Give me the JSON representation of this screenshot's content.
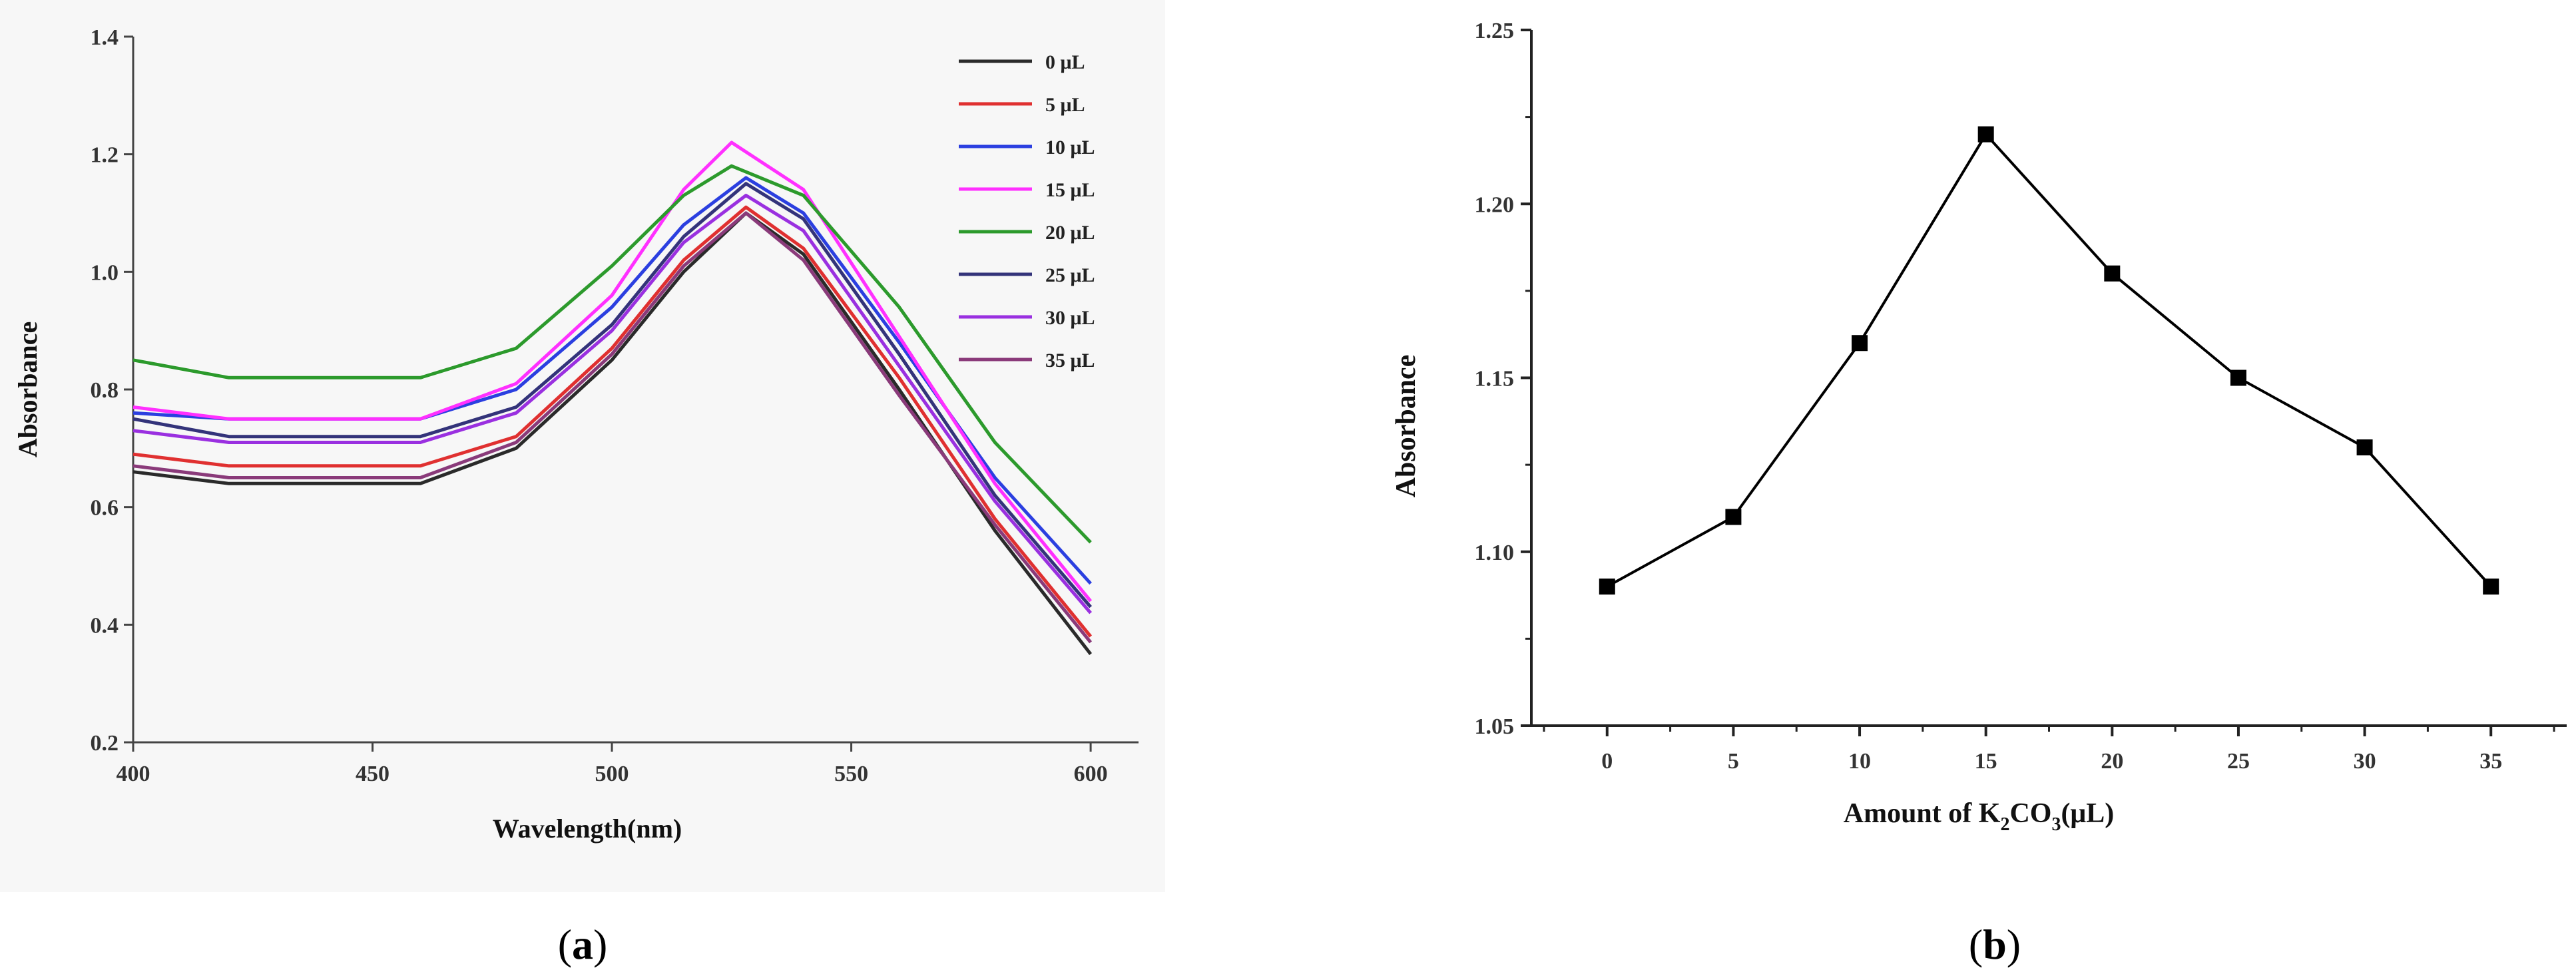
{
  "chart_data": [
    {
      "type": "line",
      "panel": "a",
      "caption_prefix": "(",
      "caption_letter": "a",
      "caption_suffix": ")",
      "title": "",
      "xlabel": "Wavelength(nm)",
      "ylabel": "Absorbance",
      "xlim": [
        400,
        610
      ],
      "ylim": [
        0.2,
        1.4
      ],
      "xticks": [
        400,
        450,
        500,
        550,
        600
      ],
      "xtick_labels": [
        "400",
        "450",
        "500",
        "550",
        "600"
      ],
      "yticks": [
        0.2,
        0.4,
        0.6,
        0.8,
        1.0,
        1.2,
        1.4
      ],
      "ytick_labels": [
        "0.2",
        "0.4",
        "0.6",
        "0.8",
        "1.0",
        "1.2",
        "1.4"
      ],
      "legend_position": "top-right",
      "series": [
        {
          "name": "0 μL",
          "color": "#2a2a2a",
          "x": [
            400,
            420,
            460,
            480,
            500,
            515,
            528,
            540,
            560,
            580,
            600
          ],
          "y": [
            0.66,
            0.64,
            0.64,
            0.7,
            0.85,
            1.0,
            1.1,
            1.03,
            0.8,
            0.56,
            0.35
          ]
        },
        {
          "name": "5 μL",
          "color": "#e03030",
          "x": [
            400,
            420,
            460,
            480,
            500,
            515,
            528,
            540,
            560,
            580,
            600
          ],
          "y": [
            0.69,
            0.67,
            0.67,
            0.72,
            0.87,
            1.02,
            1.11,
            1.04,
            0.82,
            0.58,
            0.38
          ]
        },
        {
          "name": "10 μL",
          "color": "#2b3fe0",
          "x": [
            400,
            420,
            460,
            480,
            500,
            515,
            528,
            540,
            560,
            580,
            600
          ],
          "y": [
            0.76,
            0.75,
            0.75,
            0.8,
            0.94,
            1.08,
            1.16,
            1.1,
            0.88,
            0.65,
            0.47
          ]
        },
        {
          "name": "15 μL",
          "color": "#ff30ff",
          "x": [
            400,
            420,
            460,
            480,
            500,
            515,
            525,
            540,
            560,
            580,
            600
          ],
          "y": [
            0.77,
            0.75,
            0.75,
            0.81,
            0.96,
            1.14,
            1.22,
            1.14,
            0.89,
            0.64,
            0.44
          ]
        },
        {
          "name": "20 μL",
          "color": "#2c9a2c",
          "x": [
            400,
            420,
            460,
            480,
            500,
            515,
            525,
            540,
            560,
            580,
            600
          ],
          "y": [
            0.85,
            0.82,
            0.82,
            0.87,
            1.01,
            1.13,
            1.18,
            1.13,
            0.94,
            0.71,
            0.54
          ]
        },
        {
          "name": "25 μL",
          "color": "#33337a",
          "x": [
            400,
            420,
            460,
            480,
            500,
            515,
            528,
            540,
            560,
            580,
            600
          ],
          "y": [
            0.75,
            0.72,
            0.72,
            0.77,
            0.91,
            1.06,
            1.15,
            1.09,
            0.86,
            0.62,
            0.43
          ]
        },
        {
          "name": "30 μL",
          "color": "#9a30e0",
          "x": [
            400,
            420,
            460,
            480,
            500,
            515,
            528,
            540,
            560,
            580,
            600
          ],
          "y": [
            0.73,
            0.71,
            0.71,
            0.76,
            0.9,
            1.05,
            1.13,
            1.07,
            0.84,
            0.61,
            0.42
          ]
        },
        {
          "name": "35 μL",
          "color": "#8a3a7a",
          "x": [
            400,
            420,
            460,
            480,
            500,
            515,
            528,
            540,
            560,
            580,
            600
          ],
          "y": [
            0.67,
            0.65,
            0.65,
            0.71,
            0.86,
            1.01,
            1.1,
            1.02,
            0.79,
            0.57,
            0.37
          ]
        }
      ]
    },
    {
      "type": "line",
      "panel": "b",
      "caption_prefix": "(",
      "caption_letter": "b",
      "caption_suffix": ")",
      "title": "",
      "xlabel": "Amount of K",
      "xlabel_sub1": "2",
      "xlabel_mid": "CO",
      "xlabel_sub2": "3",
      "xlabel_end": "(μL)",
      "ylabel": "Absorbance",
      "xlim": [
        -3,
        38
      ],
      "ylim": [
        1.05,
        1.25
      ],
      "xticks": [
        0,
        5,
        10,
        15,
        20,
        25,
        30,
        35
      ],
      "xtick_labels": [
        "0",
        "5",
        "10",
        "15",
        "20",
        "25",
        "30",
        "35"
      ],
      "yticks": [
        1.05,
        1.1,
        1.15,
        1.2,
        1.25
      ],
      "ytick_labels": [
        "1.05",
        "1.10",
        "1.15",
        "1.20",
        "1.25"
      ],
      "marker": "square",
      "line_color": "#000000",
      "series": [
        {
          "name": "Absorbance",
          "x": [
            0,
            5,
            10,
            15,
            20,
            25,
            30,
            35
          ],
          "y": [
            1.09,
            1.11,
            1.16,
            1.22,
            1.18,
            1.15,
            1.13,
            1.09
          ]
        }
      ]
    }
  ]
}
